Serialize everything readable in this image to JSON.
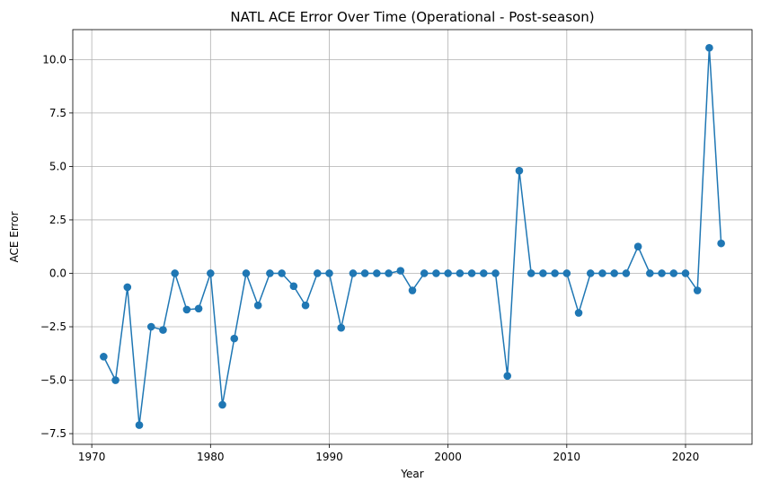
{
  "chart_data": {
    "type": "line",
    "title": "NATL ACE Error Over Time (Operational - Post-season)",
    "xlabel": "Year",
    "ylabel": "ACE Error",
    "xlim": [
      1968.4,
      2025.6
    ],
    "ylim": [
      -8.0,
      11.4
    ],
    "xticks": [
      1970,
      1980,
      1990,
      2000,
      2010,
      2020
    ],
    "yticks": [
      -7.5,
      -5.0,
      -2.5,
      0.0,
      2.5,
      5.0,
      7.5,
      10.0
    ],
    "ytick_labels": [
      "−7.5",
      "−5.0",
      "−2.5",
      "0.0",
      "2.5",
      "5.0",
      "7.5",
      "10.0"
    ],
    "grid": true,
    "marker": "circle",
    "color": "#1f77b4",
    "x": [
      1971,
      1972,
      1973,
      1974,
      1975,
      1976,
      1977,
      1978,
      1979,
      1980,
      1981,
      1982,
      1983,
      1984,
      1985,
      1986,
      1987,
      1988,
      1989,
      1990,
      1991,
      1992,
      1993,
      1994,
      1995,
      1996,
      1997,
      1998,
      1999,
      2000,
      2001,
      2002,
      2003,
      2004,
      2005,
      2006,
      2007,
      2008,
      2009,
      2010,
      2011,
      2012,
      2013,
      2014,
      2015,
      2016,
      2017,
      2018,
      2019,
      2020,
      2021,
      2022,
      2023
    ],
    "y": [
      -3.9,
      -5.0,
      -0.65,
      -7.1,
      -2.5,
      -2.65,
      0.0,
      -1.7,
      -1.65,
      0.0,
      -6.15,
      -3.05,
      0.0,
      -1.5,
      0.0,
      0.0,
      -0.6,
      -1.5,
      0.0,
      0.0,
      -2.55,
      0.0,
      0.0,
      0.0,
      0.0,
      0.12,
      -0.8,
      0.0,
      0.0,
      0.0,
      0.0,
      0.0,
      0.0,
      0.0,
      -4.8,
      4.8,
      0.0,
      0.0,
      0.0,
      0.0,
      -1.85,
      0.0,
      0.0,
      0.0,
      0.0,
      1.25,
      0.0,
      0.0,
      0.0,
      0.0,
      -0.8,
      10.55,
      1.4
    ]
  }
}
